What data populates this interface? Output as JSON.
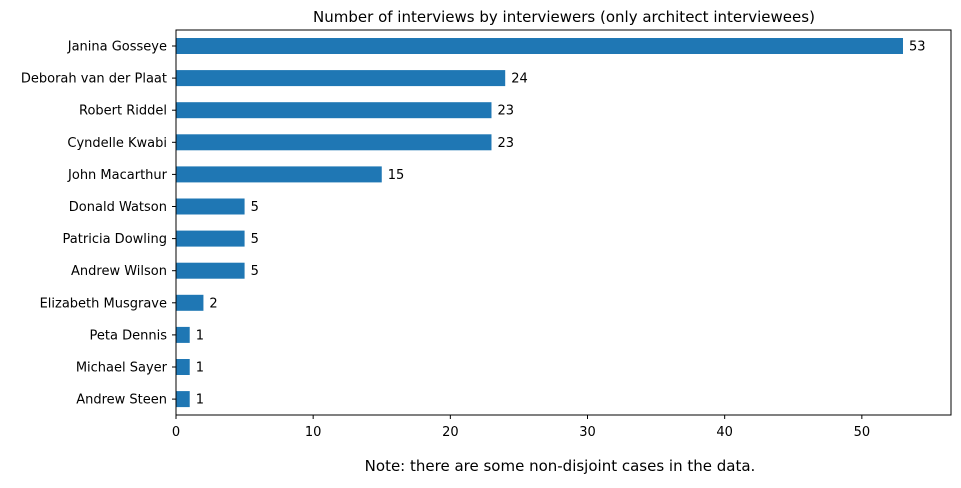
{
  "chart_data": {
    "type": "bar",
    "orientation": "horizontal",
    "title": "Number of interviews by interviewers (only architect interviewees)",
    "categories": [
      "Janina Gosseye",
      "Deborah van der Plaat",
      "Robert Riddel",
      "Cyndelle Kwabi",
      "John Macarthur",
      "Donald Watson",
      "Patricia Dowling",
      "Andrew Wilson",
      "Elizabeth Musgrave",
      "Peta Dennis",
      "Michael Sayer",
      "Andrew Steen"
    ],
    "values": [
      53,
      24,
      23,
      23,
      15,
      5,
      5,
      5,
      2,
      1,
      1,
      1
    ],
    "xlim": [
      0,
      56.5
    ],
    "xticks": [
      0,
      10,
      20,
      30,
      40,
      50
    ],
    "xlabel": "",
    "ylabel": "",
    "grid": false,
    "legend": "none",
    "bar_color": "#1f77b4",
    "data_labels": true
  },
  "note": "Note: there are some non-disjoint cases in the data."
}
